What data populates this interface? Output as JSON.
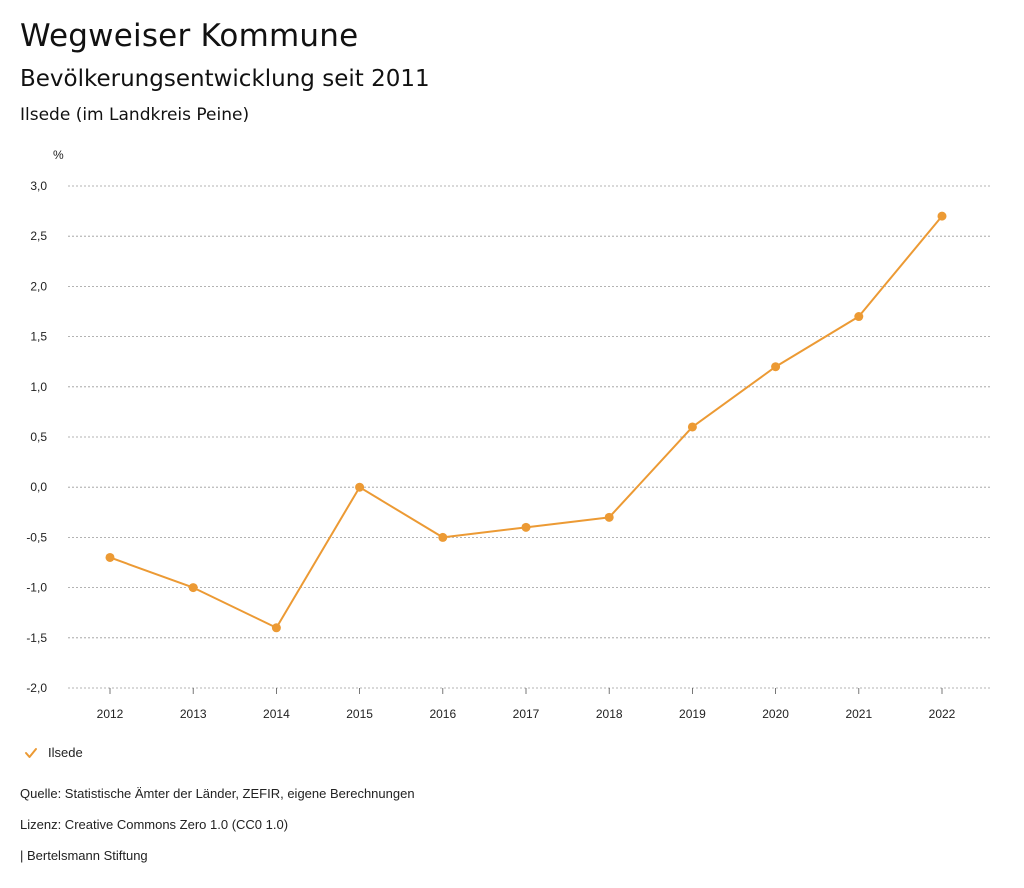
{
  "header": {
    "title": "Wegweiser Kommune",
    "subtitle": "Bevölkerungsentwicklung seit 2011",
    "region": "Ilsede (im Landkreis Peine)"
  },
  "chart_data": {
    "type": "line",
    "unit_label": "%",
    "categories": [
      "2012",
      "2013",
      "2014",
      "2015",
      "2016",
      "2017",
      "2018",
      "2019",
      "2020",
      "2021",
      "2022"
    ],
    "series": [
      {
        "name": "Ilsede",
        "color": "#ec9a34",
        "values": [
          -0.7,
          -1.0,
          -1.4,
          0.0,
          -0.5,
          -0.4,
          -0.3,
          0.6,
          1.2,
          1.7,
          2.7
        ]
      }
    ],
    "y_ticks": [
      "3,0",
      "2,5",
      "2,0",
      "1,5",
      "1,0",
      "0,5",
      "0,0",
      "-0,5",
      "-1,0",
      "-1,5",
      "-2,0"
    ],
    "ylim": [
      -2.0,
      3.0
    ],
    "grid": true,
    "legend_position": "bottom-left"
  },
  "legend": {
    "label": "Ilsede",
    "icon": "check-icon"
  },
  "footer": {
    "source": "Quelle: Statistische Ämter der Länder, ZEFIR, eigene Berechnungen",
    "license": "Lizenz: Creative Commons Zero 1.0 (CC0 1.0)",
    "publisher": "| Bertelsmann Stiftung"
  }
}
